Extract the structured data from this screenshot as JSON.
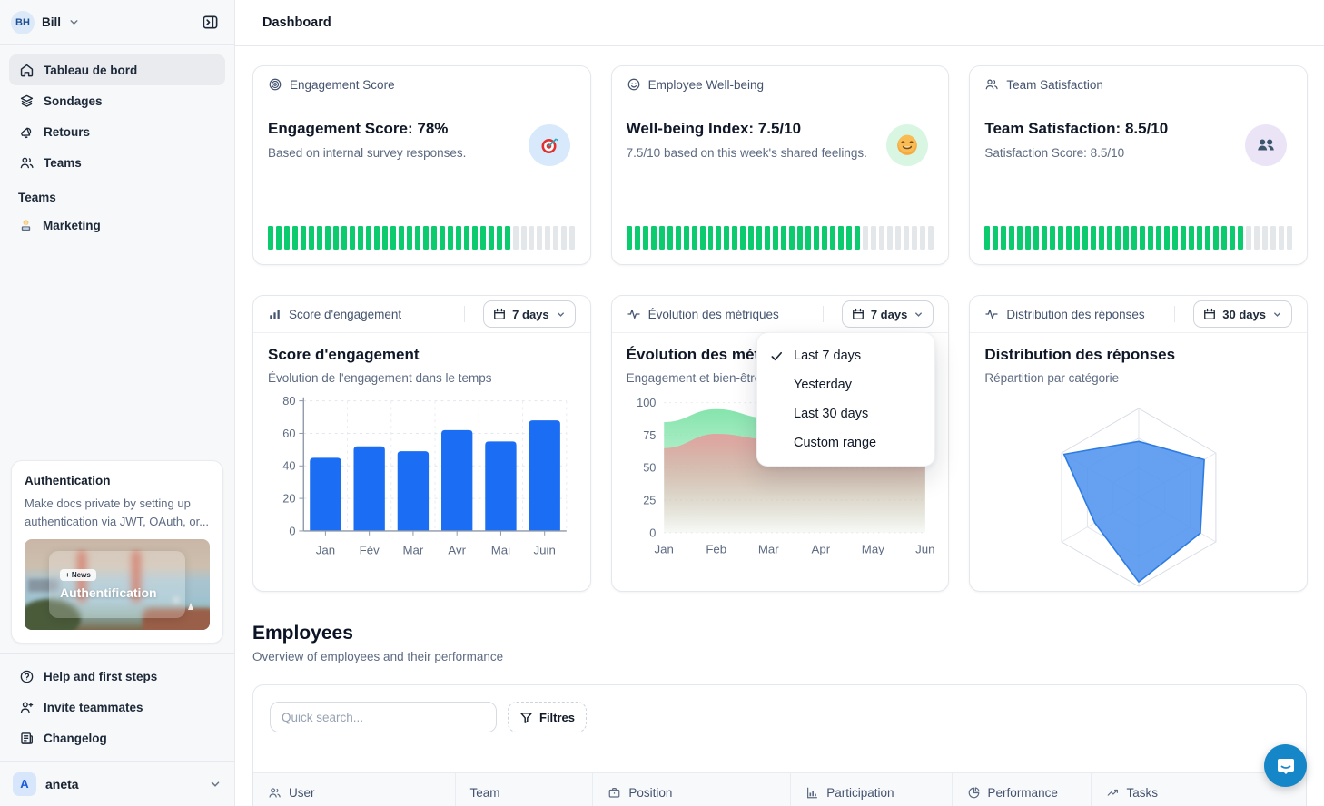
{
  "colors": {
    "accent_blue": "#1b6ef3",
    "progress_green": "#0ccb6f",
    "radar_blue": "#4b90ee",
    "area_green": "#7fe3a8",
    "area_red": "#e89b9b",
    "intercom_blue": "#1586c8"
  },
  "sidebar": {
    "user": {
      "initials": "BH",
      "name": "Bill"
    },
    "nav": [
      {
        "label": "Tableau de bord",
        "icon": "home-icon",
        "active": true
      },
      {
        "label": "Sondages",
        "icon": "layers-icon",
        "active": false
      },
      {
        "label": "Retours",
        "icon": "megaphone-icon",
        "active": false
      },
      {
        "label": "Teams",
        "icon": "people-icon",
        "active": false
      }
    ],
    "teams_section": {
      "label": "Teams",
      "items": [
        {
          "label": "Marketing",
          "icon": "technologist-emoji-icon"
        }
      ]
    },
    "promo_card": {
      "title": "Authentication",
      "body": "Make docs private by setting up authentication via JWT, OAuth, or...",
      "badge": "+ News",
      "caption": "Authentification"
    },
    "footer": [
      {
        "label": "Help and first steps",
        "icon": "help-circle-icon"
      },
      {
        "label": "Invite teammates",
        "icon": "user-plus-icon"
      },
      {
        "label": "Changelog",
        "icon": "changelog-icon"
      }
    ],
    "workspace": {
      "initial": "A",
      "name": "aneta"
    }
  },
  "header": {
    "title": "Dashboard"
  },
  "metric_cards": [
    {
      "header": "Engagement Score",
      "header_icon": "target-icon",
      "title": "Engagement Score: 78%",
      "subtitle": "Based on internal survey responses.",
      "emoji": "target-emoji-icon",
      "emoji_bg": "#d8e9fb",
      "progress_pct": 78
    },
    {
      "header": "Employee Well-being",
      "header_icon": "smile-icon",
      "title": "Well-being Index: 7.5/10",
      "subtitle": "7.5/10 based on this week's shared feelings.",
      "emoji": "smiling-face-emoji-icon",
      "emoji_bg": "#d9f6e3",
      "progress_pct": 75
    },
    {
      "header": "Team Satisfaction",
      "header_icon": "people-icon",
      "title": "Team Satisfaction: 8.5/10",
      "subtitle": "Satisfaction Score: 8.5/10",
      "emoji": "busts-emoji-icon",
      "emoji_bg": "#ebe4f7",
      "progress_pct": 85
    }
  ],
  "chart_cards": [
    {
      "header": "Score d'engagement",
      "header_icon": "bar-chart-icon",
      "range": "7 days"
    },
    {
      "header": "Évolution des métriques",
      "header_icon": "activity-icon",
      "range": "7 days"
    },
    {
      "header": "Distribution des réponses",
      "header_icon": "activity-icon",
      "range": "30 days"
    }
  ],
  "dropdown_menu": {
    "items": [
      "Last 7 days",
      "Yesterday",
      "Last 30 days",
      "Custom range"
    ],
    "selected_index": 0
  },
  "chart_data": [
    {
      "type": "bar",
      "title": "Score d'engagement",
      "subtitle": "Évolution de l'engagement dans le temps",
      "categories": [
        "Jan",
        "Fév",
        "Mar",
        "Avr",
        "Mai",
        "Juin"
      ],
      "values": [
        45,
        52,
        49,
        62,
        55,
        68
      ],
      "ylim": [
        0,
        80
      ],
      "yticks": [
        0,
        20,
        40,
        60,
        80
      ],
      "bar_color": "#1b6ef3",
      "grid": true,
      "legend": false
    },
    {
      "type": "area",
      "title": "Évolution des métriques",
      "subtitle": "Engagement et bien-être",
      "x": [
        "Jan",
        "Feb",
        "Mar",
        "Apr",
        "May",
        "Jun"
      ],
      "series": [
        {
          "name": "engagement",
          "color": "#7fe3a8",
          "values": [
            85,
            95,
            88,
            68,
            78,
            85
          ]
        },
        {
          "name": "bien-être",
          "color": "#e89b9b",
          "values": [
            65,
            76,
            72,
            58,
            66,
            70
          ]
        }
      ],
      "ylim": [
        0,
        100
      ],
      "yticks": [
        0,
        25,
        50,
        75,
        100
      ],
      "grid": true,
      "legend": false
    },
    {
      "type": "radar",
      "title": "Distribution des réponses",
      "subtitle": "Répartition par catégorie",
      "axes_count": 6,
      "values": [
        0.63,
        0.85,
        0.8,
        0.95,
        0.57,
        0.97
      ],
      "max": 1,
      "fill": "#4b90ee",
      "stroke": "#2f7ce0",
      "rings": 3
    }
  ],
  "employees": {
    "title": "Employees",
    "subtitle": "Overview of employees and their performance",
    "search_placeholder": "Quick search...",
    "filters_label": "Filtres",
    "columns": [
      {
        "label": "User",
        "icon": "people-icon"
      },
      {
        "label": "Team",
        "icon": null
      },
      {
        "label": "Position",
        "icon": "briefcase-icon"
      },
      {
        "label": "Participation",
        "icon": "bar-chart-icon"
      },
      {
        "label": "Performance",
        "icon": "pie-chart-icon"
      },
      {
        "label": "Tasks",
        "icon": "trend-up-icon"
      }
    ]
  }
}
